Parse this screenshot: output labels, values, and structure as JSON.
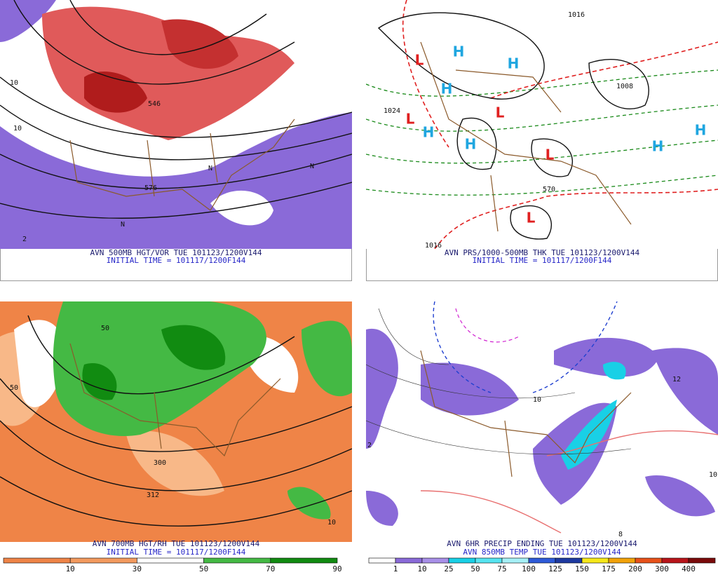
{
  "panels": [
    {
      "captions": [
        "AVN 500MB HGT/VOR TUE 101123/1200V144",
        "INITIAL TIME = 101117/1200F144"
      ],
      "labels": [
        "546",
        "10",
        "10",
        "N",
        "N",
        "N",
        "576",
        "2"
      ]
    },
    {
      "captions": [
        "AVN PRS/1000-500MB THK TUE 101123/1200V144",
        "INITIAL TIME = 101117/1200F144"
      ],
      "labels": [
        "L",
        "H",
        "H",
        "H",
        "L",
        "L",
        "H",
        "H",
        "L",
        "L",
        "H",
        "H",
        "1016",
        "1024",
        "1016",
        "570",
        "1008"
      ]
    },
    {
      "captions": [
        "AVN 700MB HGT/RH TUE 101123/1200V144",
        "INITIAL TIME = 101117/1200F144"
      ],
      "labels": [
        "50",
        "50",
        "300",
        "312",
        "10"
      ],
      "colorbar": {
        "colors": [
          "#ef8447",
          "#f39a5e",
          "#ffffff",
          "#44b944",
          "#118b11"
        ],
        "labels": [
          10,
          30,
          50,
          70,
          90
        ]
      }
    },
    {
      "captions": [
        "AVN 6HR PRECIP ENDING TUE 101123/1200V144",
        "AVN 850MB TEMP TUE 101123/1200V144"
      ],
      "labels": [
        "10",
        "10",
        "2",
        "8",
        "12"
      ],
      "colorbar": {
        "colors": [
          "#ffffff",
          "#8a6ad8",
          "#a890e8",
          "#19d0e6",
          "#56e4f0",
          "#a6f0f6",
          "#2e5ad8",
          "#1e3aa0",
          "#f6e81a",
          "#f2a20a",
          "#e8521a",
          "#b8141a",
          "#7a0a0a"
        ],
        "labels": [
          1,
          10,
          25,
          50,
          75,
          100,
          125,
          150,
          175,
          200,
          300,
          400
        ]
      }
    }
  ]
}
